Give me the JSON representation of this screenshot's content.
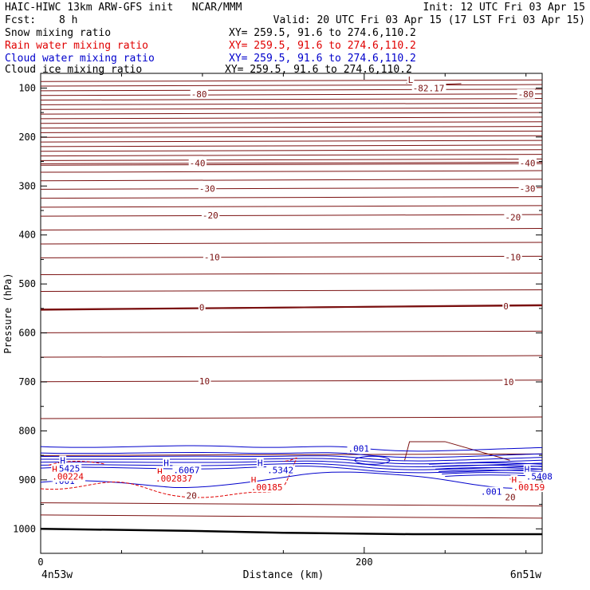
{
  "header": {
    "title": "HAIC-HIWC 13km ARW-GFS init   NCAR/MMM",
    "init": "Init: 12 UTC Fri 03 Apr 15",
    "fcst_label": "Fcst:",
    "fcst_value": "8 h",
    "valid": "Valid: 20 UTC Fri 03 Apr 15 (17 LST Fri 03 Apr 15)",
    "fields": [
      {
        "name": "Snow mixing ratio",
        "xy": "XY= 259.5, 91.6 to 274.6,110.2",
        "color": "#000000"
      },
      {
        "name": "Rain water mixing ratio",
        "xy": "XY= 259.5, 91.6 to 274.6,110.2",
        "color": "#e00000"
      },
      {
        "name": "Cloud water mixing ratio",
        "xy": "XY= 259.5, 91.6 to 274.6,110.2",
        "color": "#0000cc"
      },
      {
        "name": "Cloud ice mixing ratio",
        "xy": "XY= 259.5, 91.6 to 274.6,110.2",
        "color": "#000000"
      }
    ]
  },
  "chart_data": {
    "type": "line",
    "title": "",
    "xlabel": "Distance (km)",
    "ylabel": "Pressure (hPa)",
    "xlim": [
      0,
      310
    ],
    "ylim": [
      1050,
      70
    ],
    "x_ticks": [
      0,
      200
    ],
    "y_ticks": [
      100,
      200,
      300,
      400,
      500,
      600,
      700,
      800,
      900,
      1000
    ],
    "x_end_labels": {
      "left": "4n53w",
      "right": "6n51w"
    },
    "colors": {
      "temperature": "#7a1010",
      "cloud_water": "#0000cc",
      "rain_water": "#e00000",
      "terrain": "#000000"
    },
    "temperature_isotherms": [
      {
        "value": -80,
        "pressure": 112
      },
      {
        "value": -40,
        "pressure": 253
      },
      {
        "value": -30,
        "pressure": 305
      },
      {
        "value": -20,
        "pressure": 360
      },
      {
        "value": -10,
        "pressure": 445
      },
      {
        "value": 0,
        "pressure": 548
      },
      {
        "value": 10,
        "pressure": 698
      },
      {
        "value": 20,
        "pressure": 924
      }
    ],
    "temperature_labels": [
      {
        "text": "-80",
        "x": 93,
        "p": 112
      },
      {
        "text": "-80",
        "x": 295,
        "p": 112
      },
      {
        "text": "-40",
        "x": 92,
        "p": 253
      },
      {
        "text": "-40",
        "x": 296,
        "p": 253
      },
      {
        "text": "-30",
        "x": 98,
        "p": 305
      },
      {
        "text": "-30",
        "x": 296,
        "p": 305
      },
      {
        "text": "-20",
        "x": 100,
        "p": 360
      },
      {
        "text": "-20",
        "x": 287,
        "p": 364
      },
      {
        "text": "-10",
        "x": 101,
        "p": 445
      },
      {
        "text": "-10",
        "x": 287,
        "p": 445
      },
      {
        "text": "0",
        "x": 98,
        "p": 548
      },
      {
        "text": "0",
        "x": 286,
        "p": 545
      },
      {
        "text": "10",
        "x": 98,
        "p": 698
      },
      {
        "text": "10",
        "x": 286,
        "p": 700
      },
      {
        "text": "20",
        "x": 90,
        "p": 932
      },
      {
        "text": "20",
        "x": 287,
        "p": 935
      }
    ],
    "cloud_water_labels": [
      {
        "text": "H",
        "x": 12,
        "p": 860
      },
      {
        "text": ".5425",
        "x": 8,
        "p": 877
      },
      {
        "text": "H",
        "x": 76,
        "p": 865
      },
      {
        "text": ".6067",
        "x": 82,
        "p": 880
      },
      {
        "text": "H",
        "x": 134,
        "p": 865
      },
      {
        "text": ".5342",
        "x": 140,
        "p": 880
      },
      {
        "text": ".001",
        "x": 190,
        "p": 836
      },
      {
        "text": ".001",
        "x": 8,
        "p": 902
      },
      {
        "text": "H",
        "x": 299,
        "p": 878
      },
      {
        "text": ".5408",
        "x": 300,
        "p": 893
      },
      {
        "text": ".001",
        "x": 272,
        "p": 924
      }
    ],
    "rain_water_labels": [
      {
        "text": "H",
        "x": 7,
        "p": 878
      },
      {
        "text": ".00224",
        "x": 7,
        "p": 893
      },
      {
        "text": "H",
        "x": 72,
        "p": 883
      },
      {
        "text": ".002837",
        "x": 71,
        "p": 897
      },
      {
        "text": "H",
        "x": 130,
        "p": 900
      },
      {
        "text": ".00185",
        "x": 130,
        "p": 915
      },
      {
        "text": "H",
        "x": 291,
        "p": 900
      },
      {
        "text": ".00159",
        "x": 292,
        "p": 915
      }
    ],
    "extra_labels": [
      {
        "text": "L",
        "x": 227,
        "p": 83
      },
      {
        "text": "-82.17",
        "x": 230,
        "p": 100
      }
    ],
    "terrain": {
      "x": [
        0,
        90,
        150,
        230,
        310
      ],
      "p": [
        1000,
        1004,
        1008,
        1011,
        1011
      ]
    }
  }
}
